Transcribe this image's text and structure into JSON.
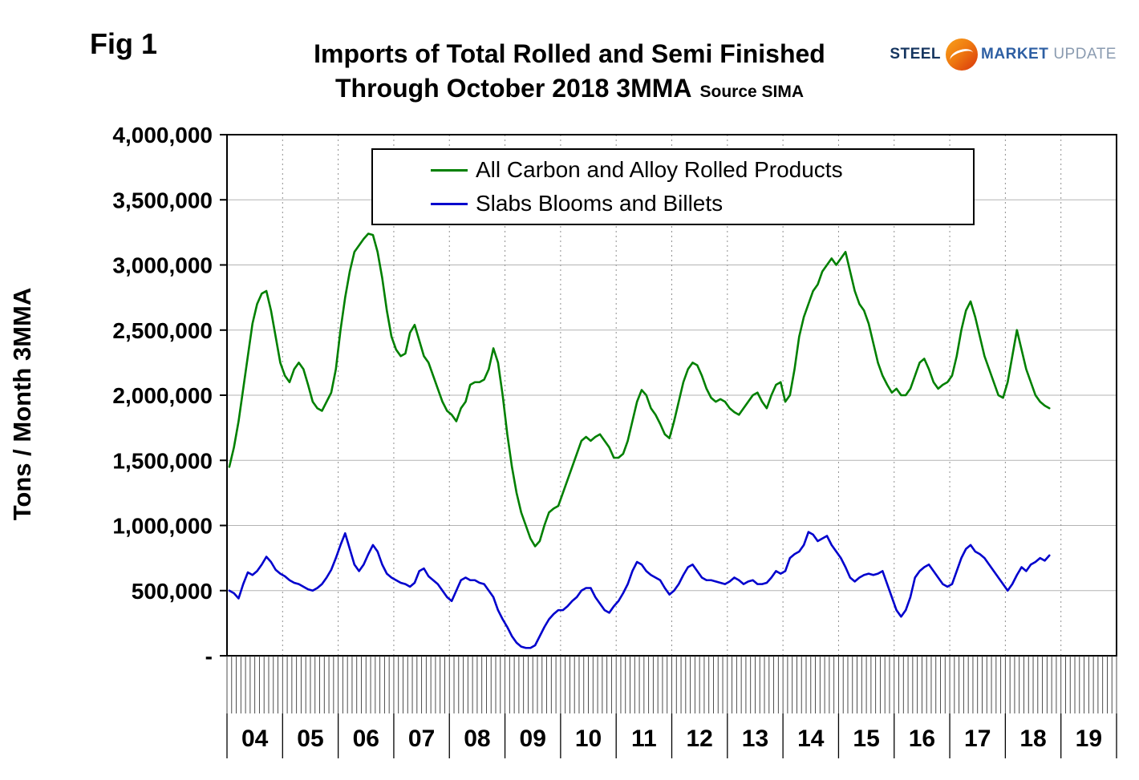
{
  "fig_label": "Fig 1",
  "title": {
    "line1": "Imports of Total Rolled and Semi Finished",
    "line2": "Through October 2018 3MMA",
    "source": "Source SIMA"
  },
  "logo": {
    "steel": "STEEL",
    "market": "MARKET",
    "update": "UPDATE"
  },
  "y_axis": {
    "label": "Tons / Month 3MMA",
    "tick_labels": [
      "4,000,000",
      "3,500,000",
      "3,000,000",
      "2,500,000",
      "2,000,000",
      "1,500,000",
      "1,000,000",
      "500,000",
      "-"
    ]
  },
  "x_axis": {
    "year_labels": [
      "04",
      "05",
      "06",
      "07",
      "08",
      "09",
      "10",
      "11",
      "12",
      "13",
      "14",
      "15",
      "16",
      "17",
      "18",
      "19"
    ]
  },
  "legend": {
    "items": [
      {
        "label": "All Carbon and Alloy Rolled Products",
        "color": "#008000"
      },
      {
        "label": "Slabs Blooms and Billets",
        "color": "#0000cd"
      }
    ]
  },
  "chart_data": {
    "type": "line",
    "title": "Imports of Total Rolled and Semi Finished Through October 2018 3MMA",
    "source": "Source SIMA",
    "ylabel": "Tons / Month 3MMA",
    "ylim": [
      0,
      4000000
    ],
    "y_tick_step": 500000,
    "x_start": "2004-01",
    "x_end": "2018-10",
    "x_axis_span_years": 16,
    "grid": {
      "horizontal": true,
      "vertical_dashed_yearly": true,
      "monthly_hatch_below_axis": true
    },
    "legend_position": "inside-top-center",
    "series": [
      {
        "name": "All Carbon and Alloy Rolled Products",
        "color": "#008000",
        "values": [
          1450000,
          1600000,
          1800000,
          2050000,
          2300000,
          2550000,
          2700000,
          2780000,
          2800000,
          2650000,
          2450000,
          2250000,
          2150000,
          2100000,
          2200000,
          2250000,
          2200000,
          2080000,
          1950000,
          1900000,
          1880000,
          1950000,
          2020000,
          2200000,
          2500000,
          2750000,
          2950000,
          3100000,
          3150000,
          3200000,
          3240000,
          3230000,
          3100000,
          2900000,
          2650000,
          2450000,
          2350000,
          2300000,
          2320000,
          2480000,
          2540000,
          2420000,
          2300000,
          2250000,
          2150000,
          2050000,
          1950000,
          1880000,
          1850000,
          1800000,
          1900000,
          1950000,
          2080000,
          2100000,
          2100000,
          2120000,
          2200000,
          2360000,
          2250000,
          2000000,
          1700000,
          1450000,
          1250000,
          1100000,
          1000000,
          900000,
          840000,
          880000,
          1000000,
          1100000,
          1130000,
          1150000,
          1250000,
          1350000,
          1450000,
          1550000,
          1650000,
          1680000,
          1650000,
          1680000,
          1700000,
          1650000,
          1600000,
          1520000,
          1520000,
          1550000,
          1650000,
          1800000,
          1950000,
          2040000,
          2000000,
          1900000,
          1850000,
          1780000,
          1700000,
          1670000,
          1800000,
          1950000,
          2100000,
          2200000,
          2250000,
          2230000,
          2150000,
          2050000,
          1980000,
          1950000,
          1970000,
          1950000,
          1900000,
          1870000,
          1850000,
          1900000,
          1950000,
          2000000,
          2020000,
          1950000,
          1900000,
          2000000,
          2080000,
          2100000,
          1950000,
          2000000,
          2200000,
          2450000,
          2600000,
          2700000,
          2800000,
          2850000,
          2950000,
          3000000,
          3050000,
          3000000,
          3050000,
          3100000,
          2950000,
          2800000,
          2700000,
          2650000,
          2550000,
          2400000,
          2250000,
          2150000,
          2080000,
          2020000,
          2050000,
          2000000,
          2000000,
          2050000,
          2150000,
          2250000,
          2280000,
          2200000,
          2100000,
          2050000,
          2080000,
          2100000,
          2150000,
          2300000,
          2500000,
          2650000,
          2720000,
          2600000,
          2450000,
          2300000,
          2200000,
          2100000,
          2000000,
          1980000,
          2100000,
          2300000,
          2500000,
          2350000,
          2200000,
          2100000,
          2000000,
          1950000,
          1920000,
          1900000
        ]
      },
      {
        "name": "Slabs Blooms and Billets",
        "color": "#0000cd",
        "values": [
          500000,
          480000,
          440000,
          550000,
          640000,
          620000,
          650000,
          700000,
          760000,
          720000,
          660000,
          630000,
          610000,
          580000,
          560000,
          550000,
          530000,
          510000,
          500000,
          520000,
          550000,
          600000,
          660000,
          750000,
          850000,
          940000,
          820000,
          700000,
          650000,
          700000,
          780000,
          850000,
          800000,
          700000,
          630000,
          600000,
          580000,
          560000,
          550000,
          530000,
          560000,
          650000,
          670000,
          610000,
          580000,
          550000,
          500000,
          450000,
          420000,
          500000,
          580000,
          600000,
          580000,
          580000,
          560000,
          550000,
          500000,
          450000,
          350000,
          280000,
          220000,
          150000,
          100000,
          70000,
          60000,
          60000,
          80000,
          150000,
          220000,
          280000,
          320000,
          350000,
          350000,
          380000,
          420000,
          450000,
          500000,
          520000,
          520000,
          450000,
          400000,
          350000,
          330000,
          380000,
          420000,
          480000,
          550000,
          650000,
          720000,
          700000,
          650000,
          620000,
          600000,
          580000,
          520000,
          470000,
          500000,
          550000,
          620000,
          680000,
          700000,
          650000,
          600000,
          580000,
          580000,
          570000,
          560000,
          550000,
          570000,
          600000,
          580000,
          550000,
          570000,
          580000,
          550000,
          550000,
          560000,
          600000,
          650000,
          630000,
          650000,
          750000,
          780000,
          800000,
          850000,
          950000,
          930000,
          880000,
          900000,
          920000,
          850000,
          800000,
          750000,
          680000,
          600000,
          570000,
          600000,
          620000,
          630000,
          620000,
          630000,
          650000,
          550000,
          450000,
          350000,
          300000,
          350000,
          450000,
          600000,
          650000,
          680000,
          700000,
          650000,
          600000,
          550000,
          530000,
          550000,
          650000,
          750000,
          820000,
          850000,
          800000,
          780000,
          750000,
          700000,
          650000,
          600000,
          550000,
          500000,
          550000,
          620000,
          680000,
          650000,
          700000,
          720000,
          750000,
          730000,
          770000
        ]
      }
    ]
  }
}
